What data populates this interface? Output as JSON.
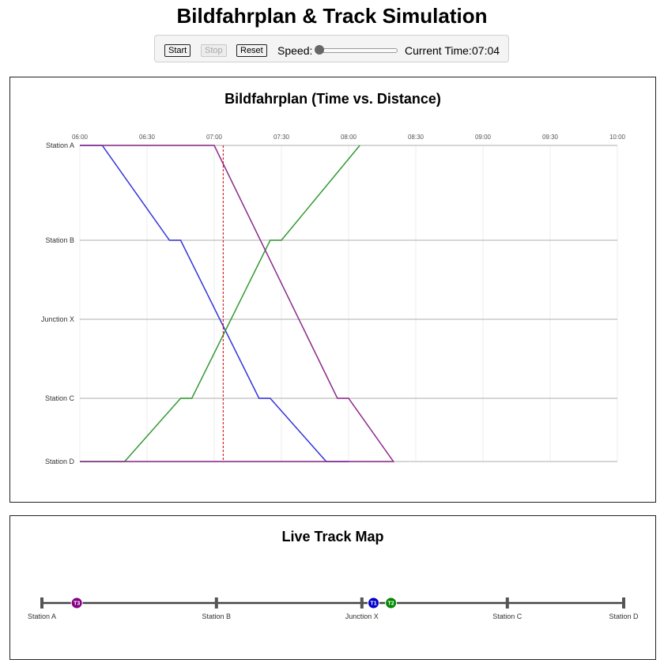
{
  "app": {
    "title": "Bildfahrplan & Track Simulation"
  },
  "controls": {
    "start_label": "Start",
    "stop_label": "Stop",
    "reset_label": "Reset",
    "speed_label": "Speed:",
    "speed_value": 0,
    "time_label": "Current Time:",
    "time_value": "07:04"
  },
  "timetable": {
    "title": "Bildfahrplan (Time vs. Distance)",
    "time_ticks": [
      "06:00",
      "06:30",
      "07:00",
      "07:30",
      "08:00",
      "08:30",
      "09:00",
      "09:30",
      "10:00"
    ],
    "current_time": "07:04",
    "current_time_color": "#cc0000"
  },
  "chart_data": {
    "type": "line",
    "title": "Bildfahrplan (Time vs. Distance)",
    "x_range": [
      "06:00",
      "10:00"
    ],
    "stations": [
      {
        "name": "Station A",
        "km": 0
      },
      {
        "name": "Station B",
        "km": 30
      },
      {
        "name": "Junction X",
        "km": 55
      },
      {
        "name": "Station C",
        "km": 80
      },
      {
        "name": "Station D",
        "km": 100
      }
    ],
    "y_range": [
      0,
      100
    ],
    "grid": true,
    "series": [
      {
        "color": "#3333dd",
        "points": [
          [
            "06:00",
            0
          ],
          [
            "06:10",
            0
          ],
          [
            "06:40",
            30
          ],
          [
            "06:45",
            30
          ],
          [
            "07:20",
            80
          ],
          [
            "07:25",
            80
          ],
          [
            "07:50",
            100
          ],
          [
            "08:00",
            100
          ]
        ]
      },
      {
        "color": "#339933",
        "points": [
          [
            "06:00",
            100
          ],
          [
            "06:20",
            100
          ],
          [
            "06:45",
            80
          ],
          [
            "06:50",
            80
          ],
          [
            "07:25",
            30
          ],
          [
            "07:30",
            30
          ],
          [
            "08:05",
            0
          ]
        ]
      },
      {
        "color": "#8b2a8b",
        "points": [
          [
            "06:00",
            0
          ],
          [
            "07:00",
            0
          ],
          [
            "07:55",
            80
          ],
          [
            "08:00",
            80
          ],
          [
            "08:20",
            100
          ],
          [
            "06:00",
            100
          ]
        ]
      }
    ]
  },
  "track_map": {
    "title": "Live Track Map",
    "stations": [
      "Station A",
      "Station B",
      "Junction X",
      "Station C",
      "Station D"
    ],
    "trains": [
      {
        "id": "T3",
        "color": "#880088",
        "position_km": 6
      },
      {
        "id": "T1",
        "color": "#0000cc",
        "position_km": 57
      },
      {
        "id": "T2",
        "color": "#008800",
        "position_km": 60
      }
    ]
  }
}
